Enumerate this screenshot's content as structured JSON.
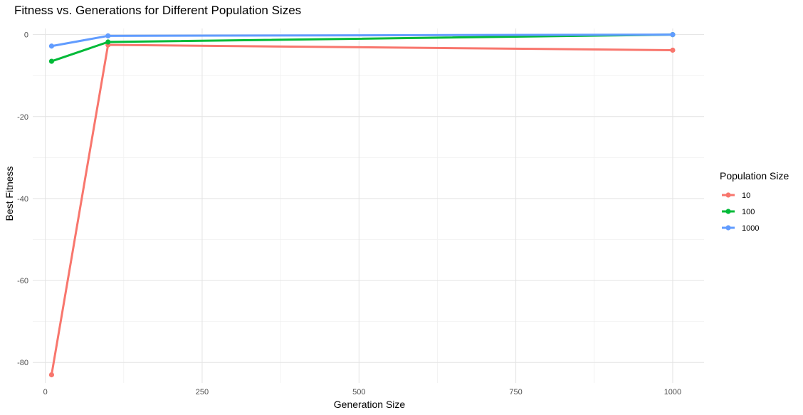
{
  "chart_data": {
    "type": "line",
    "title": "Fitness vs. Generations for Different Population Sizes",
    "xlabel": "Generation Size",
    "ylabel": "Best Fitness",
    "x": [
      10,
      100,
      1000
    ],
    "xlim": [
      -20,
      1050
    ],
    "ylim": [
      -85,
      1.5
    ],
    "xticks": [
      0,
      250,
      500,
      750,
      1000
    ],
    "xtick_labels": [
      "0",
      "250",
      "500",
      "750",
      "1000"
    ],
    "yticks": [
      0,
      -20,
      -40,
      -60,
      -80
    ],
    "ytick_labels": [
      "0",
      "-20",
      "-40",
      "-60",
      "-80"
    ],
    "grid": true,
    "legend": {
      "title": "Population Size",
      "position": "right"
    },
    "series": [
      {
        "name": "10",
        "color": "#F8766D",
        "values": [
          -83,
          -2.5,
          -3.8
        ]
      },
      {
        "name": "100",
        "color": "#00BA38",
        "values": [
          -6.5,
          -1.8,
          0
        ]
      },
      {
        "name": "1000",
        "color": "#619CFF",
        "values": [
          -2.8,
          -0.3,
          0
        ]
      }
    ]
  }
}
